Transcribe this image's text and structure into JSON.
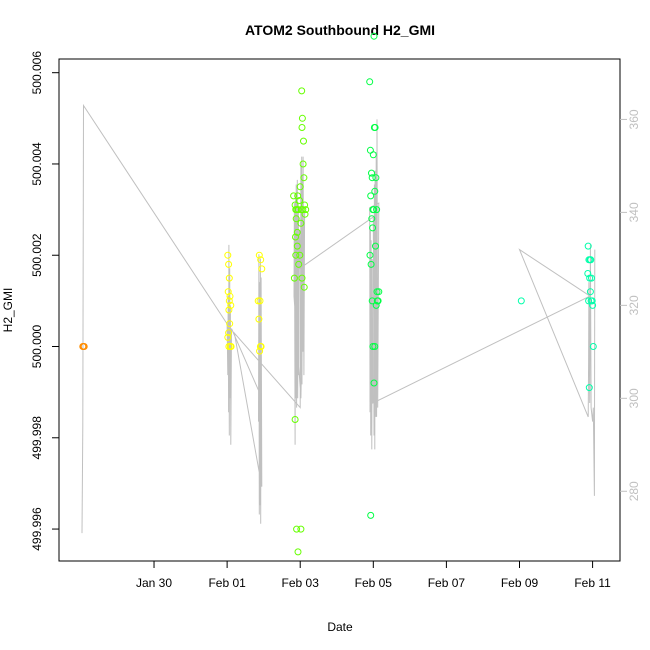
{
  "chart_data": {
    "type": "scatter",
    "title": "ATOM2 Southbound H2_GMI",
    "xlabel": "Date",
    "ylabel": "H2_GMI",
    "y2label": "",
    "xlim_days": [
      27.4,
      42.75
    ],
    "ylim": [
      499.9953,
      500.0063
    ],
    "y2lim": [
      265,
      373
    ],
    "grid": false,
    "legend": "none",
    "x_ticks": [
      {
        "day": 30,
        "label": "Jan 30"
      },
      {
        "day": 32,
        "label": "Feb 01"
      },
      {
        "day": 34,
        "label": "Feb 03"
      },
      {
        "day": 36,
        "label": "Feb 05"
      },
      {
        "day": 38,
        "label": "Feb 07"
      },
      {
        "day": 40,
        "label": "Feb 09"
      },
      {
        "day": 42,
        "label": "Feb 11"
      }
    ],
    "y_ticks": [
      {
        "value": 499.996,
        "label": "499.996"
      },
      {
        "value": 499.998,
        "label": "499.998"
      },
      {
        "value": 500.0,
        "label": "500.000"
      },
      {
        "value": 500.002,
        "label": "500.002"
      },
      {
        "value": 500.004,
        "label": "500.004"
      },
      {
        "value": 500.006,
        "label": "500.006"
      }
    ],
    "y2_ticks": [
      {
        "value": 280,
        "label": "280"
      },
      {
        "value": 300,
        "label": "300"
      },
      {
        "value": 320,
        "label": "320"
      },
      {
        "value": 340,
        "label": "340"
      },
      {
        "value": 360,
        "label": "360"
      }
    ],
    "colors": {
      "line": "#c0c0c0",
      "orange": "#ff8c00",
      "yellow": "#ffff00",
      "yellowgreen": "#ccff33",
      "green1": "#66ff00",
      "green2": "#00ff44",
      "aqua": "#00ffaa"
    },
    "series": [
      {
        "color": "orange",
        "points": [
          [
            28.05,
            500.0
          ],
          [
            28.07,
            500.0
          ],
          [
            28.09,
            500.0
          ]
        ]
      },
      {
        "color": "yellow",
        "points": [
          [
            32.02,
            500.002
          ],
          [
            32.04,
            500.0018
          ],
          [
            32.06,
            500.0015
          ],
          [
            32.03,
            500.0012
          ],
          [
            32.08,
            500.0011
          ],
          [
            32.05,
            500.0008
          ],
          [
            32.07,
            500.0005
          ],
          [
            32.02,
            500.0002
          ],
          [
            32.09,
            500.0
          ],
          [
            32.11,
            500.0
          ],
          [
            32.05,
            500.0
          ],
          [
            32.06,
            500.001
          ],
          [
            32.1,
            500.0009
          ],
          [
            32.04,
            500.0003
          ],
          [
            32.88,
            500.002
          ],
          [
            32.92,
            500.0019
          ],
          [
            32.95,
            500.0017
          ],
          [
            32.85,
            500.001
          ],
          [
            32.9,
            500.001
          ],
          [
            32.87,
            500.0006
          ],
          [
            32.93,
            500.0
          ],
          [
            32.89,
            499.9999
          ],
          [
            32.91,
            500.0
          ]
        ]
      },
      {
        "color": "green1",
        "points": [
          [
            34.05,
            500.0048
          ],
          [
            34.08,
            500.004
          ],
          [
            34.1,
            500.0037
          ],
          [
            34.03,
            500.003
          ],
          [
            34.12,
            500.0031
          ],
          [
            34.07,
            500.003
          ],
          [
            34.15,
            500.003
          ],
          [
            34.05,
            500.0015
          ],
          [
            34.11,
            500.0013
          ],
          [
            34.06,
            500.005
          ],
          [
            34.04,
            500.0056
          ],
          [
            34.09,
            500.0045
          ],
          [
            34.02,
            499.996
          ],
          [
            34.13,
            500.0029
          ],
          [
            33.82,
            500.0033
          ],
          [
            33.86,
            500.0031
          ],
          [
            33.88,
            500.003
          ],
          [
            33.91,
            500.003
          ],
          [
            33.95,
            500.003
          ],
          [
            33.98,
            500.0032
          ],
          [
            34.02,
            500.0027
          ],
          [
            33.87,
            500.0024
          ],
          [
            33.92,
            500.0022
          ],
          [
            33.99,
            500.002
          ],
          [
            33.88,
            500.002
          ],
          [
            33.96,
            500.0018
          ],
          [
            33.84,
            500.0015
          ],
          [
            33.92,
            500.0025
          ],
          [
            34.0,
            500.0035
          ],
          [
            33.86,
            499.9984
          ],
          [
            33.9,
            499.996
          ],
          [
            33.94,
            499.9955
          ],
          [
            33.89,
            500.0028
          ],
          [
            33.93,
            500.0033
          ]
        ]
      },
      {
        "color": "green2",
        "points": [
          [
            36.02,
            500.0068
          ],
          [
            36.03,
            500.0048
          ],
          [
            36.05,
            500.0048
          ],
          [
            36.0,
            500.0042
          ],
          [
            36.07,
            500.0037
          ],
          [
            36.04,
            500.0034
          ],
          [
            36.09,
            500.003
          ],
          [
            36.01,
            500.003
          ],
          [
            36.06,
            500.0022
          ],
          [
            36.1,
            500.0012
          ],
          [
            36.12,
            500.001
          ],
          [
            36.08,
            500.0009
          ],
          [
            36.11,
            500.001
          ],
          [
            36.13,
            500.001
          ],
          [
            36.15,
            500.0012
          ],
          [
            36.04,
            500.0
          ],
          [
            36.02,
            499.9992
          ],
          [
            35.9,
            500.0058
          ],
          [
            35.92,
            500.0043
          ],
          [
            35.95,
            500.0038
          ],
          [
            35.97,
            500.0037
          ],
          [
            35.93,
            500.0033
          ],
          [
            35.99,
            500.003
          ],
          [
            35.96,
            500.0028
          ],
          [
            35.98,
            500.0026
          ],
          [
            35.91,
            500.002
          ],
          [
            35.94,
            500.0018
          ],
          [
            35.97,
            500.001
          ],
          [
            35.99,
            500.0
          ],
          [
            35.93,
            499.9963
          ]
        ]
      },
      {
        "color": "aqua",
        "points": [
          [
            40.05,
            500.001
          ],
          [
            41.88,
            500.0022
          ],
          [
            41.9,
            500.0019
          ],
          [
            41.93,
            500.0019
          ],
          [
            41.95,
            500.0019
          ],
          [
            41.87,
            500.0016
          ],
          [
            41.92,
            500.0015
          ],
          [
            41.97,
            500.0015
          ],
          [
            41.94,
            500.0012
          ],
          [
            41.89,
            500.001
          ],
          [
            41.96,
            500.001
          ],
          [
            41.99,
            500.001
          ],
          [
            42.0,
            500.0009
          ],
          [
            42.02,
            500.0
          ],
          [
            41.91,
            499.9991
          ]
        ]
      }
    ],
    "line_series": {
      "y_axis": "right",
      "points": [
        [
          28.03,
          271
        ],
        [
          28.05,
          294
        ],
        [
          28.07,
          363
        ],
        [
          32.0,
          316
        ],
        [
          32.02,
          305
        ],
        [
          32.03,
          322
        ],
        [
          32.04,
          297
        ],
        [
          32.05,
          333
        ],
        [
          32.06,
          292
        ],
        [
          32.07,
          328
        ],
        [
          32.08,
          300
        ],
        [
          32.09,
          320
        ],
        [
          32.1,
          290
        ],
        [
          32.12,
          315
        ],
        [
          32.9,
          301
        ],
        [
          32.86,
          295
        ],
        [
          32.87,
          331
        ],
        [
          32.88,
          275
        ],
        [
          32.89,
          325
        ],
        [
          32.9,
          277
        ],
        [
          32.91,
          330
        ],
        [
          32.92,
          273
        ],
        [
          32.93,
          326
        ],
        [
          32.95,
          281
        ],
        [
          32.2,
          314
        ],
        [
          34.0,
          298
        ],
        [
          34.02,
          350
        ],
        [
          34.03,
          305
        ],
        [
          34.04,
          352
        ],
        [
          34.05,
          303
        ],
        [
          34.06,
          348
        ],
        [
          34.07,
          310
        ],
        [
          34.08,
          352
        ],
        [
          34.1,
          305
        ],
        [
          34.12,
          340
        ],
        [
          34.02,
          300
        ],
        [
          33.83,
          322
        ],
        [
          33.84,
          342
        ],
        [
          33.86,
          290
        ],
        [
          33.87,
          344
        ],
        [
          33.88,
          300
        ],
        [
          33.89,
          346
        ],
        [
          33.9,
          298
        ],
        [
          33.92,
          347
        ],
        [
          33.93,
          300
        ],
        [
          33.95,
          341
        ],
        [
          33.96,
          305
        ],
        [
          33.98,
          336
        ],
        [
          34.0,
          328
        ],
        [
          36.0,
          339
        ],
        [
          36.02,
          292
        ],
        [
          36.03,
          346
        ],
        [
          36.04,
          289
        ],
        [
          36.05,
          349
        ],
        [
          36.07,
          296
        ],
        [
          36.08,
          353
        ],
        [
          36.09,
          296
        ],
        [
          36.1,
          360
        ],
        [
          36.12,
          298
        ],
        [
          36.15,
          342
        ],
        [
          35.9,
          341
        ],
        [
          35.91,
          297
        ],
        [
          35.92,
          336
        ],
        [
          35.93,
          292
        ],
        [
          35.94,
          334
        ],
        [
          35.96,
          289
        ],
        [
          35.97,
          330
        ],
        [
          35.99,
          299
        ],
        [
          41.93,
          322
        ],
        [
          40.0,
          332
        ],
        [
          41.88,
          296
        ],
        [
          41.89,
          308
        ],
        [
          41.9,
          325
        ],
        [
          41.92,
          299
        ],
        [
          41.94,
          333
        ],
        [
          41.96,
          298
        ],
        [
          42.0,
          295
        ],
        [
          42.02,
          298
        ],
        [
          42.05,
          279
        ],
        [
          42.06,
          332
        ]
      ]
    }
  }
}
